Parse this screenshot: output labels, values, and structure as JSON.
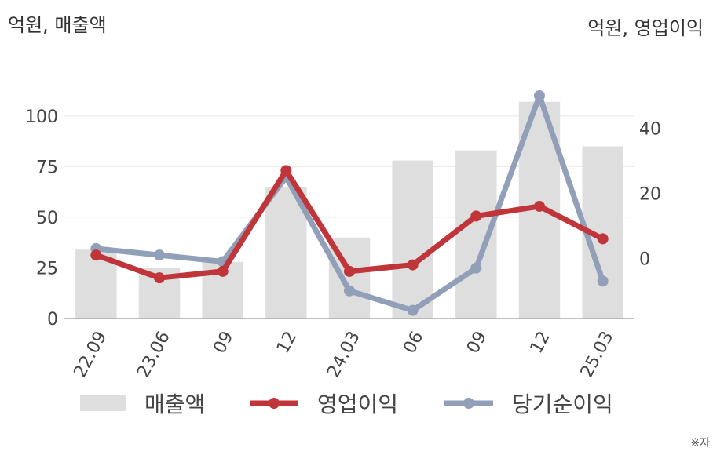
{
  "labels": {
    "left_unit": "억원, 매출액",
    "right_unit": "억원, 영업이익",
    "footnote": "※자"
  },
  "colors": {
    "bar": "#dedede",
    "operating_profit": "#c0353a",
    "net_income": "#929fb8",
    "grid": "#e8e8e8",
    "axis": "#aaaaaa"
  },
  "chart_data": {
    "type": "bar+line",
    "categories": [
      "22.09",
      "23.06",
      "09",
      "12",
      "24.03",
      "06",
      "09",
      "12",
      "25.03"
    ],
    "series": [
      {
        "name": "매출액",
        "type": "bar",
        "axis": "left",
        "values": [
          34,
          25,
          28,
          65,
          40,
          78,
          83,
          107,
          85
        ]
      },
      {
        "name": "영업이익",
        "type": "line",
        "axis": "right",
        "values": [
          1,
          -6,
          -4,
          27,
          -4,
          -2,
          13,
          16,
          6
        ]
      },
      {
        "name": "당기순이익",
        "type": "line",
        "axis": "right",
        "values": [
          3,
          1,
          -1,
          25,
          -10,
          -16,
          -3,
          50,
          -7
        ]
      }
    ],
    "left_axis": {
      "ticks": [
        0,
        25,
        50,
        75,
        100
      ],
      "range": [
        0,
        110
      ]
    },
    "right_axis": {
      "ticks": [
        0,
        20,
        40
      ],
      "range": [
        -18.5,
        50
      ]
    },
    "grid": true,
    "legend_position": "bottom"
  }
}
